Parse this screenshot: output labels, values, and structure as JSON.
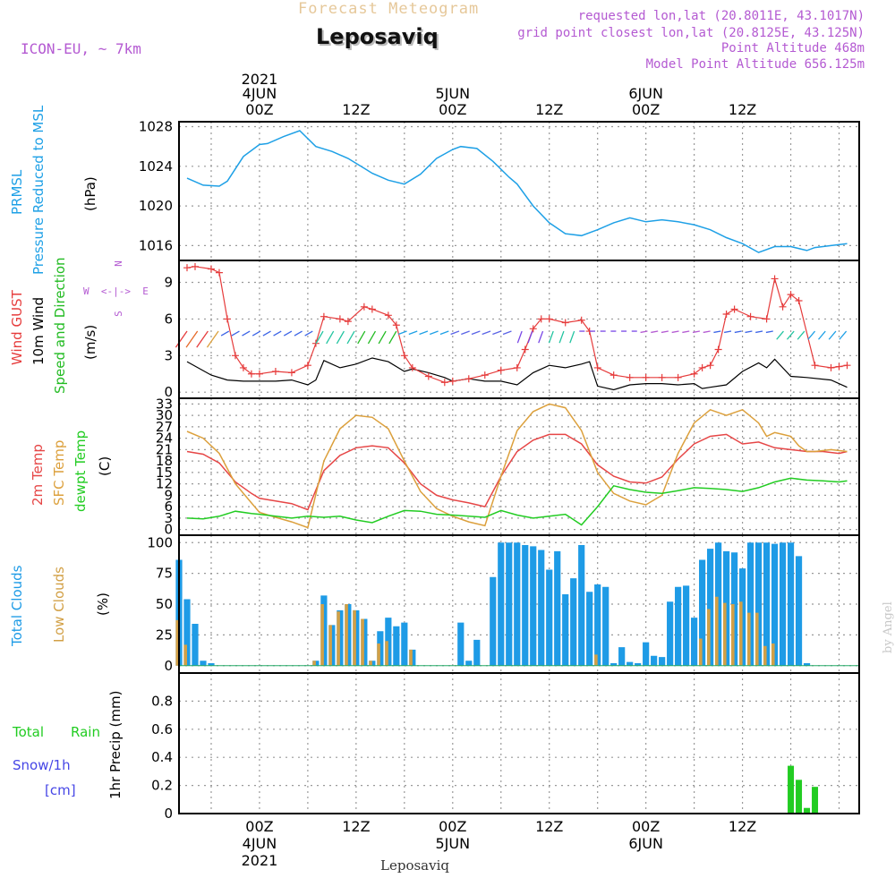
{
  "header": {
    "product": "Forecast Meteogram",
    "location": "Leposaviq",
    "model": "ICON-EU, ~ 7km",
    "requested": "requested lon,lat (20.8011E, 43.1017N)",
    "grid": "grid point closest lon,lat (20.8125E, 43.125N)",
    "point_alt": "Point Altitude 468m",
    "model_alt": "Model Point Altitude 656.125m",
    "credit": "by Angel",
    "footer": "Leposaviq"
  },
  "colors": {
    "pressure": "#1ea0e6",
    "gust": "#e63c3c",
    "wind": "#000000",
    "direction": "#22bb22",
    "temp": "#e64646",
    "sfc": "#dca03c",
    "dewpt": "#22cc22",
    "total_clouds": "#1e9be6",
    "low_clouds": "#d2a046",
    "rain": "#22cc22",
    "snow": "#4646e6",
    "purple": "#b45ad2"
  },
  "axis": {
    "top_year": "2021",
    "top_labels": [
      "4JUN",
      "00Z",
      "12Z",
      "5JUN",
      "00Z",
      "12Z",
      "6JUN",
      "00Z",
      "12Z"
    ],
    "bottom_labels": [
      "00Z",
      "4JUN",
      "2021",
      "12Z",
      "00Z",
      "5JUN",
      "12Z",
      "00Z",
      "6JUN",
      "12Z"
    ]
  },
  "panel_labels": {
    "p1": [
      "PRMSL",
      "Pressure Reduced to MSL",
      "(hPa)"
    ],
    "p2": [
      "Wind GUST",
      "10m Wind",
      "Speed and Direction",
      "(m/s)"
    ],
    "compass": [
      "N",
      "W  <-|->  E",
      "S"
    ],
    "p3": [
      "2m Temp",
      "SFC Temp",
      "dewpt Temp",
      "(C)"
    ],
    "p4": [
      "Total Clouds",
      "Low Clouds",
      "(%)"
    ],
    "p5": [
      "Total",
      "Rain",
      "Snow/1h",
      "[cm]",
      "1hr Precip (mm)"
    ]
  },
  "chart_data": [
    {
      "type": "line",
      "title": "PRMSL Pressure Reduced to MSL",
      "ylabel": "(hPa)",
      "x_unit": "hours from 4JUN 00Z",
      "ylim": [
        1014.5,
        1028.5
      ],
      "yticks": [
        1016,
        1020,
        1024,
        1028
      ],
      "grid": true,
      "series": [
        {
          "name": "PRMSL",
          "x": [
            -9,
            -7,
            -5,
            -4,
            -2,
            0,
            1,
            3,
            5,
            7,
            9,
            11,
            13,
            14,
            16,
            18,
            20,
            22,
            24,
            25,
            27,
            29,
            31,
            32,
            34,
            36,
            38,
            40,
            42,
            44,
            46,
            48,
            50,
            52,
            54,
            56,
            58,
            60,
            62,
            64,
            66,
            68,
            69,
            71,
            73
          ],
          "values": [
            1022.8,
            1022.1,
            1022.0,
            1022.5,
            1025.0,
            1026.2,
            1026.3,
            1027.0,
            1027.6,
            1026.0,
            1025.5,
            1024.8,
            1023.8,
            1023.3,
            1022.6,
            1022.2,
            1023.2,
            1024.8,
            1025.7,
            1026.0,
            1025.8,
            1024.5,
            1022.9,
            1022.2,
            1020.0,
            1018.3,
            1017.2,
            1017.0,
            1017.6,
            1018.3,
            1018.8,
            1018.4,
            1018.6,
            1018.4,
            1018.1,
            1017.6,
            1016.8,
            1016.2,
            1015.3,
            1015.9,
            1015.9,
            1015.5,
            1015.8,
            1016.0,
            1016.2
          ]
        }
      ]
    },
    {
      "type": "line",
      "title": "Wind GUST, 10m Wind Speed and Direction",
      "ylabel": "(m/s)",
      "x_unit": "hours from 4JUN 00Z",
      "ylim": [
        -0.5,
        10.8
      ],
      "yticks": [
        0,
        3,
        6,
        9
      ],
      "grid": true,
      "series": [
        {
          "name": "Wind GUST",
          "x": [
            -9,
            -8,
            -6,
            -5,
            -4,
            -3,
            -2,
            -1,
            0,
            2,
            4,
            6,
            7,
            8,
            10,
            11,
            13,
            14,
            16,
            17,
            18,
            19,
            21,
            23,
            24,
            26,
            28,
            30,
            32,
            33,
            34,
            35,
            36,
            38,
            40,
            41,
            42,
            44,
            46,
            48,
            50,
            52,
            54,
            55,
            56,
            57,
            58,
            59,
            61,
            63,
            64,
            65,
            66,
            67,
            69,
            71,
            72,
            73
          ],
          "values": [
            10.2,
            10.3,
            10.1,
            9.8,
            6.0,
            3.0,
            2.0,
            1.5,
            1.5,
            1.7,
            1.6,
            2.2,
            4.0,
            6.2,
            6.0,
            5.8,
            7.0,
            6.8,
            6.3,
            5.5,
            3.0,
            2.0,
            1.3,
            0.8,
            0.9,
            1.1,
            1.4,
            1.8,
            2.0,
            3.5,
            5.2,
            6.0,
            6.0,
            5.7,
            5.9,
            5.0,
            2.0,
            1.4,
            1.2,
            1.2,
            1.2,
            1.2,
            1.5,
            2.0,
            2.2,
            3.5,
            6.4,
            6.8,
            6.2,
            6.0,
            9.3,
            7.0,
            8.0,
            7.5,
            2.2,
            2.0,
            2.1,
            2.2
          ]
        },
        {
          "name": "10m Wind",
          "x": [
            -9,
            -6,
            -4,
            -2,
            0,
            2,
            4,
            6,
            7,
            8,
            10,
            12,
            14,
            16,
            18,
            19,
            21,
            23,
            24,
            26,
            28,
            30,
            32,
            34,
            36,
            38,
            40,
            41,
            42,
            44,
            46,
            48,
            50,
            52,
            54,
            55,
            56,
            58,
            60,
            62,
            63,
            64,
            66,
            68,
            71,
            73
          ],
          "values": [
            2.5,
            1.4,
            1.0,
            0.9,
            0.9,
            0.9,
            1.0,
            0.6,
            1.0,
            2.6,
            2.0,
            2.3,
            2.8,
            2.5,
            1.7,
            1.9,
            1.6,
            1.2,
            0.9,
            1.1,
            0.9,
            0.9,
            0.6,
            1.6,
            2.2,
            2.0,
            2.3,
            2.5,
            0.5,
            0.2,
            0.6,
            0.7,
            0.7,
            0.6,
            0.7,
            0.3,
            0.4,
            0.6,
            1.7,
            2.4,
            2.0,
            2.7,
            1.3,
            1.2,
            1.0,
            0.4
          ]
        }
      ]
    },
    {
      "type": "line",
      "title": "2m Temp, SFC Temp, dewpt Temp",
      "ylabel": "(C)",
      "x_unit": "hours from 4JUN 00Z",
      "ylim": [
        -1.5,
        34.5
      ],
      "yticks": [
        0,
        3,
        6,
        9,
        12,
        15,
        18,
        21,
        24,
        27,
        30,
        33
      ],
      "grid": true,
      "series": [
        {
          "name": "2m Temp",
          "x": [
            -9,
            -7,
            -5,
            -3,
            -1,
            0,
            2,
            4,
            6,
            8,
            10,
            12,
            14,
            16,
            18,
            20,
            22,
            24,
            26,
            28,
            30,
            32,
            34,
            36,
            38,
            40,
            42,
            44,
            46,
            48,
            50,
            52,
            54,
            56,
            58,
            60,
            62,
            64,
            66,
            68,
            70,
            72,
            73
          ],
          "values": [
            20.5,
            19.8,
            17.5,
            12.5,
            9.5,
            8.2,
            7.5,
            6.8,
            5.2,
            15.5,
            19.5,
            21.5,
            22.0,
            21.5,
            17.5,
            12.0,
            9.0,
            7.8,
            7.0,
            6.0,
            14.0,
            20.5,
            23.5,
            25.0,
            25.0,
            22.5,
            17.0,
            14.0,
            12.5,
            12.2,
            13.8,
            18.5,
            22.5,
            24.5,
            25.0,
            22.5,
            23.0,
            21.5,
            21.0,
            20.5,
            20.5,
            20.0,
            20.5
          ]
        },
        {
          "name": "SFC Temp",
          "x": [
            -9,
            -7,
            -5,
            -3,
            -1,
            0,
            2,
            4,
            6,
            8,
            10,
            12,
            14,
            16,
            18,
            20,
            22,
            24,
            26,
            28,
            30,
            32,
            34,
            36,
            38,
            40,
            42,
            44,
            46,
            48,
            50,
            52,
            54,
            56,
            58,
            60,
            62,
            63,
            64,
            65,
            66,
            67,
            68,
            69,
            71,
            73
          ],
          "values": [
            25.8,
            24.0,
            20.0,
            12.0,
            7.0,
            4.5,
            3.2,
            2.0,
            0.5,
            18.0,
            26.5,
            30.0,
            29.5,
            26.5,
            18.0,
            10.0,
            5.5,
            3.5,
            2.0,
            1.0,
            14.0,
            26.0,
            31.0,
            33.0,
            32.0,
            26.0,
            15.0,
            9.5,
            7.5,
            6.5,
            9.0,
            20.0,
            28.0,
            31.5,
            30.0,
            31.5,
            28.0,
            24.5,
            25.5,
            25.0,
            24.5,
            22.0,
            20.5,
            20.5,
            21.0,
            20.5
          ]
        },
        {
          "name": "dewpt Temp",
          "x": [
            -9,
            -7,
            -5,
            -3,
            -1,
            0,
            2,
            4,
            6,
            8,
            10,
            12,
            14,
            16,
            18,
            20,
            22,
            24,
            26,
            28,
            30,
            32,
            34,
            36,
            38,
            40,
            42,
            44,
            46,
            48,
            50,
            52,
            54,
            56,
            58,
            60,
            62,
            64,
            66,
            68,
            70,
            72,
            73
          ],
          "values": [
            3.0,
            2.8,
            3.5,
            4.8,
            4.2,
            4.0,
            3.5,
            3.0,
            3.5,
            3.2,
            3.5,
            2.5,
            1.8,
            3.5,
            5.0,
            4.8,
            4.0,
            3.8,
            3.5,
            3.2,
            5.0,
            3.8,
            3.0,
            3.5,
            4.0,
            1.2,
            6.0,
            11.5,
            10.5,
            9.8,
            9.5,
            10.2,
            11.0,
            10.8,
            10.5,
            10.0,
            11.0,
            12.5,
            13.5,
            13.0,
            12.8,
            12.5,
            12.8
          ]
        }
      ]
    },
    {
      "type": "bar",
      "title": "Total Clouds, Low Clouds",
      "ylabel": "(%)",
      "x_unit": "hours from 4JUN 00Z",
      "ylim": [
        -6,
        106
      ],
      "yticks": [
        0,
        25,
        50,
        75,
        100
      ],
      "grid": true,
      "x": [
        -10,
        -9,
        -8,
        -7,
        -6,
        -5,
        -4,
        -3,
        -2,
        -1,
        0,
        1,
        2,
        3,
        4,
        5,
        6,
        7,
        8,
        9,
        10,
        11,
        12,
        13,
        14,
        15,
        16,
        17,
        18,
        19,
        20,
        21,
        22,
        23,
        24,
        25,
        26,
        27,
        28,
        29,
        30,
        31,
        32,
        33,
        34,
        35,
        36,
        37,
        38,
        39,
        40,
        41,
        42,
        43,
        44,
        45,
        46,
        47,
        48,
        49,
        50,
        51,
        52,
        53,
        54,
        55,
        56,
        57,
        58,
        59,
        60,
        61,
        62,
        63,
        64,
        65,
        66,
        67,
        68,
        69,
        70,
        71,
        72,
        73
      ],
      "series": [
        {
          "name": "Total Clouds",
          "values": [
            86,
            54,
            34,
            4,
            2,
            0,
            0,
            0,
            0,
            0,
            0,
            0,
            0,
            0,
            0,
            0,
            0,
            4,
            57,
            33,
            45,
            50,
            45,
            38,
            4,
            28,
            39,
            32,
            35,
            13,
            0,
            0,
            0,
            0,
            0,
            35,
            4,
            21,
            0,
            72,
            100,
            100,
            100,
            98,
            97,
            94,
            78,
            93,
            58,
            71,
            98,
            60,
            66,
            64,
            2,
            15,
            3,
            2,
            19,
            8,
            7,
            52,
            64,
            65,
            39,
            86,
            95,
            100,
            93,
            92,
            79,
            100,
            100,
            100,
            99,
            100,
            100,
            89,
            2,
            0,
            0,
            0,
            0,
            0
          ]
        },
        {
          "name": "Low Clouds",
          "values": [
            37,
            17,
            0,
            0,
            0,
            0,
            0,
            0,
            0,
            0,
            0,
            0,
            0,
            0,
            0,
            0,
            0,
            4,
            50,
            33,
            44,
            50,
            45,
            38,
            4,
            18,
            20,
            0,
            0,
            13,
            0,
            0,
            0,
            0,
            0,
            0,
            0,
            0,
            0,
            0,
            0,
            0,
            0,
            0,
            0,
            0,
            0,
            0,
            0,
            0,
            0,
            0,
            9,
            0,
            0,
            0,
            0,
            0,
            0,
            0,
            0,
            0,
            0,
            0,
            0,
            22,
            46,
            56,
            51,
            50,
            52,
            43,
            43,
            16,
            18,
            0,
            0,
            0,
            0,
            0,
            0,
            0,
            0,
            0
          ]
        }
      ]
    },
    {
      "type": "bar",
      "title": "Total Rain, Snow/1h",
      "ylabel": "1hr Precip (mm)",
      "x_unit": "hours from 4JUN 00Z",
      "ylim": [
        0,
        1.0
      ],
      "yticks": [
        0,
        0.2,
        0.4,
        0.6,
        0.8
      ],
      "grid": true,
      "x": [
        63,
        64,
        65,
        66,
        67,
        68,
        69,
        70,
        71,
        72
      ],
      "series": [
        {
          "name": "Total Rain",
          "values": [
            0.003,
            0.005,
            0.0,
            0.34,
            0.24,
            0.04,
            0.19,
            0.0,
            0.0,
            0.0
          ]
        }
      ]
    }
  ]
}
